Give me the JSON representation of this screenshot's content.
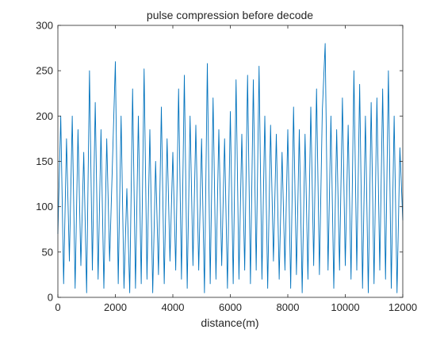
{
  "chart_data": {
    "type": "line",
    "title": "pulse compression before decode",
    "xlabel": "distance(m)",
    "ylabel": "",
    "xlim": [
      0,
      12000
    ],
    "ylim": [
      0,
      300
    ],
    "x_ticks": [
      0,
      2000,
      4000,
      6000,
      8000,
      10000,
      12000
    ],
    "x_tick_labels": [
      "0",
      "2000",
      "4000",
      "6000",
      "8000",
      "10000",
      "12000"
    ],
    "y_ticks": [
      0,
      50,
      100,
      150,
      200,
      250,
      300
    ],
    "y_tick_labels": [
      "0",
      "50",
      "100",
      "150",
      "200",
      "250",
      "300"
    ],
    "grid": false,
    "line_color": "#0072BD",
    "series": [
      {
        "x": [
          0,
          100,
          200,
          300,
          400,
          500,
          600,
          700,
          800,
          900,
          1000,
          1100,
          1200,
          1300,
          1400,
          1500,
          1600,
          1700,
          1800,
          1900,
          2000,
          2100,
          2200,
          2300,
          2400,
          2500,
          2600,
          2700,
          2800,
          2900,
          3000,
          3100,
          3200,
          3300,
          3400,
          3500,
          3600,
          3700,
          3800,
          3900,
          4000,
          4100,
          4200,
          4300,
          4400,
          4500,
          4600,
          4700,
          4800,
          4900,
          5000,
          5100,
          5200,
          5300,
          5400,
          5500,
          5600,
          5700,
          5800,
          5900,
          6000,
          6100,
          6200,
          6300,
          6400,
          6500,
          6600,
          6700,
          6800,
          6900,
          7000,
          7100,
          7200,
          7300,
          7400,
          7500,
          7600,
          7700,
          7800,
          7900,
          8000,
          8100,
          8200,
          8300,
          8400,
          8500,
          8600,
          8700,
          8800,
          8900,
          9000,
          9100,
          9200,
          9300,
          9400,
          9500,
          9600,
          9700,
          9800,
          9900,
          10000,
          10100,
          10200,
          10300,
          10400,
          10500,
          10600,
          10700,
          10800,
          10900,
          11000,
          11100,
          11200,
          11300,
          11400,
          11500,
          11600,
          11700,
          11800,
          11900,
          12000
        ],
        "values": [
          70,
          200,
          15,
          175,
          40,
          200,
          10,
          185,
          35,
          160,
          5,
          250,
          30,
          215,
          20,
          185,
          10,
          175,
          40,
          150,
          260,
          15,
          200,
          10,
          120,
          5,
          230,
          10,
          200,
          15,
          252,
          20,
          185,
          5,
          150,
          25,
          210,
          15,
          175,
          40,
          160,
          30,
          230,
          20,
          245,
          10,
          200,
          35,
          190,
          30,
          175,
          5,
          258,
          15,
          220,
          20,
          185,
          35,
          175,
          10,
          205,
          15,
          240,
          20,
          180,
          30,
          245,
          15,
          240,
          30,
          255,
          20,
          200,
          10,
          190,
          40,
          180,
          20,
          160,
          30,
          185,
          10,
          210,
          25,
          185,
          5,
          180,
          20,
          210,
          35,
          230,
          25,
          205,
          280,
          30,
          200,
          10,
          185,
          30,
          220,
          35,
          190,
          20,
          250,
          30,
          235,
          10,
          200,
          5,
          215,
          15,
          220,
          30,
          230,
          20,
          250,
          10,
          200,
          5,
          165,
          85
        ]
      }
    ]
  }
}
